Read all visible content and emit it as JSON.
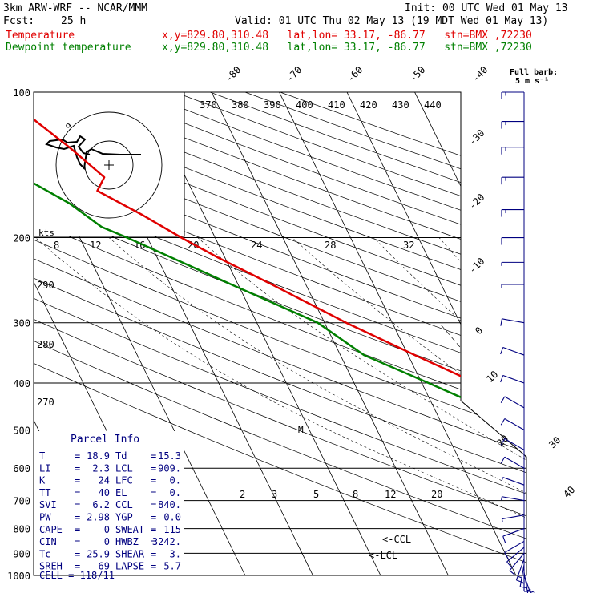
{
  "header": {
    "model": "3km ARW-WRF -- NCAR/MMM",
    "init": "Init: 00 UTC Wed 01 May 13",
    "fcst_label": "Fcst:",
    "fcst_value": "25 h",
    "valid": "Valid: 01 UTC Thu 02 May 13 (19 MDT Wed 01 May 13)",
    "temp_label": "Temperature",
    "temp_info": "x,y=829.80,310.48   lat,lon= 33.17, -86.77   stn=BMX ,72230",
    "dew_label": "Dewpoint temperature",
    "dew_info": "x,y=829.80,310.48   lat,lon= 33.17, -86.77   stn=BMX ,72230"
  },
  "colors": {
    "temperature": "#e00000",
    "dewpoint": "#008000",
    "wind": "#000080",
    "text": "#000080"
  },
  "wind_panel": {
    "title1": "Full barb:",
    "title2": "5 m s⁻¹"
  },
  "parcel_info": {
    "title": "Parcel Info",
    "rows": [
      {
        "k1": "T",
        "v1": "18.9",
        "k2": "Td",
        "v2": "15.3"
      },
      {
        "k1": "LI",
        "v1": "2.3",
        "k2": "LCL",
        "v2": "909."
      },
      {
        "k1": "K",
        "v1": "24",
        "k2": "LFC",
        "v2": "0."
      },
      {
        "k1": "TT",
        "v1": "40",
        "k2": "EL",
        "v2": "0."
      },
      {
        "k1": "SVI",
        "v1": "6.2",
        "k2": "CCL",
        "v2": "840."
      },
      {
        "k1": "PW",
        "v1": "2.98",
        "k2": "YGP",
        "v2": "0.0"
      },
      {
        "k1": "CAPE",
        "v1": "0",
        "k2": "SWEAT",
        "v2": "115"
      },
      {
        "k1": "CIN",
        "v1": "0",
        "k2": "HWBZ",
        "v2": "3242."
      },
      {
        "k1": "Tc",
        "v1": "25.9",
        "k2": "SHEAR",
        "v2": "3."
      },
      {
        "k1": "SREH",
        "v1": "69",
        "k2": "LAPSE",
        "v2": "5.7"
      }
    ],
    "cell": "CELL = 118/11"
  },
  "hodograph": {
    "units": "kts",
    "ring_label": "9"
  },
  "annotations": {
    "ccl": "<-CCL",
    "lcl": "<-LCL",
    "m": "M"
  },
  "chart_data": {
    "type": "line",
    "title": "",
    "xlabel": "",
    "ylabel": "",
    "pressure_levels": [
      100,
      200,
      300,
      400,
      500,
      600,
      700,
      800,
      900,
      1000
    ],
    "pressure_labels": [
      "100",
      "200",
      "300",
      "400",
      "500",
      "600",
      "700",
      "800",
      "900",
      "1000"
    ],
    "isotherm_labels_top": [
      "-80",
      "-70",
      "-60",
      "-50",
      "-40"
    ],
    "isotherm_labels_right": [
      "-30",
      "-20",
      "-10",
      "0",
      "10",
      "20",
      "30",
      "40"
    ],
    "theta_e_labels": [
      "370",
      "380",
      "390",
      "400",
      "410",
      "420",
      "430",
      "440"
    ],
    "mixing_ratio_labels_upper": [
      "8",
      "12",
      "16",
      "20",
      "24",
      "28",
      "32"
    ],
    "mixing_ratio_labels_lower": [
      "2",
      "3",
      "5",
      "8",
      "12",
      "20"
    ],
    "adiabat_labels": [
      "290",
      "280",
      "270"
    ],
    "series": [
      {
        "name": "Temperature",
        "points": [
          {
            "p": 1000,
            "t": 19.0
          },
          {
            "p": 975,
            "t": 17.0
          },
          {
            "p": 950,
            "t": 14.8
          },
          {
            "p": 925,
            "t": 14.0
          },
          {
            "p": 900,
            "t": 14.2
          },
          {
            "p": 875,
            "t": 13.8
          },
          {
            "p": 850,
            "t": 13.2
          },
          {
            "p": 800,
            "t": 9.8
          },
          {
            "p": 750,
            "t": 5.6
          },
          {
            "p": 700,
            "t": 2.8
          },
          {
            "p": 650,
            "t": 0.2
          },
          {
            "p": 600,
            "t": -3.0
          },
          {
            "p": 550,
            "t": -6.8
          },
          {
            "p": 500,
            "t": -11.0
          },
          {
            "p": 450,
            "t": -16.0
          },
          {
            "p": 400,
            "t": -22.0
          },
          {
            "p": 350,
            "t": -29.0
          },
          {
            "p": 300,
            "t": -36.8
          },
          {
            "p": 250,
            "t": -45.0
          },
          {
            "p": 220,
            "t": -51.0
          },
          {
            "p": 200,
            "t": -55.0
          },
          {
            "p": 180,
            "t": -59.0
          },
          {
            "p": 160,
            "t": -64.0
          },
          {
            "p": 150,
            "t": -62.0
          },
          {
            "p": 130,
            "t": -65.0
          },
          {
            "p": 115,
            "t": -68.0
          },
          {
            "p": 100,
            "t": -71.0
          }
        ]
      },
      {
        "name": "Dewpoint temperature",
        "points": [
          {
            "p": 1000,
            "t": 15.3
          },
          {
            "p": 975,
            "t": 15.0
          },
          {
            "p": 950,
            "t": 14.5
          },
          {
            "p": 925,
            "t": 11.0
          },
          {
            "p": 900,
            "t": 8.0
          },
          {
            "p": 875,
            "t": 4.5
          },
          {
            "p": 850,
            "t": 1.5
          },
          {
            "p": 825,
            "t": -1.5
          },
          {
            "p": 800,
            "t": -1.5
          },
          {
            "p": 750,
            "t": -1.0
          },
          {
            "p": 700,
            "t": -3.5
          },
          {
            "p": 650,
            "t": -8.0
          },
          {
            "p": 600,
            "t": -15.0
          },
          {
            "p": 550,
            "t": -19.0
          },
          {
            "p": 500,
            "t": -20.0
          },
          {
            "p": 450,
            "t": -22.5
          },
          {
            "p": 400,
            "t": -29.0
          },
          {
            "p": 350,
            "t": -36.5
          },
          {
            "p": 300,
            "t": -41.0
          },
          {
            "p": 250,
            "t": -51.0
          },
          {
            "p": 200,
            "t": -63.0
          },
          {
            "p": 190,
            "t": -66.0
          },
          {
            "p": 170,
            "t": -69.0
          },
          {
            "p": 150,
            "t": -74.0
          },
          {
            "p": 130,
            "t": -79.0
          },
          {
            "p": 110,
            "t": -84.0
          },
          {
            "p": 100,
            "t": -86.0
          }
        ]
      }
    ],
    "wind_barbs": [
      {
        "p": 1000,
        "spd": 15,
        "dir": 160
      },
      {
        "p": 985,
        "spd": 15,
        "dir": 170
      },
      {
        "p": 970,
        "spd": 15,
        "dir": 180
      },
      {
        "p": 950,
        "spd": 15,
        "dir": 190
      },
      {
        "p": 925,
        "spd": 15,
        "dir": 200
      },
      {
        "p": 900,
        "spd": 10,
        "dir": 220
      },
      {
        "p": 875,
        "spd": 10,
        "dir": 230
      },
      {
        "p": 850,
        "spd": 10,
        "dir": 240
      },
      {
        "p": 800,
        "spd": 10,
        "dir": 250
      },
      {
        "p": 750,
        "spd": 5,
        "dir": 260
      },
      {
        "p": 700,
        "spd": 5,
        "dir": 280
      },
      {
        "p": 650,
        "spd": 5,
        "dir": 290
      },
      {
        "p": 600,
        "spd": 10,
        "dir": 300
      },
      {
        "p": 550,
        "spd": 10,
        "dir": 300
      },
      {
        "p": 500,
        "spd": 10,
        "dir": 300
      },
      {
        "p": 450,
        "spd": 10,
        "dir": 300
      },
      {
        "p": 400,
        "spd": 10,
        "dir": 290
      },
      {
        "p": 350,
        "spd": 10,
        "dir": 290
      },
      {
        "p": 300,
        "spd": 10,
        "dir": 280
      },
      {
        "p": 250,
        "spd": 5,
        "dir": 270
      },
      {
        "p": 225,
        "spd": 5,
        "dir": 270
      },
      {
        "p": 200,
        "spd": 10,
        "dir": 270
      },
      {
        "p": 175,
        "spd": 15,
        "dir": 270
      },
      {
        "p": 150,
        "spd": 15,
        "dir": 270
      },
      {
        "p": 130,
        "spd": 15,
        "dir": 270
      },
      {
        "p": 115,
        "spd": 15,
        "dir": 270
      },
      {
        "p": 100,
        "spd": 15,
        "dir": 270
      }
    ]
  }
}
